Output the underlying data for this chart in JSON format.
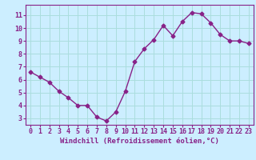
{
  "x": [
    0,
    1,
    2,
    3,
    4,
    5,
    6,
    7,
    8,
    9,
    10,
    11,
    12,
    13,
    14,
    15,
    16,
    17,
    18,
    19,
    20,
    21,
    22,
    23
  ],
  "y": [
    6.6,
    6.2,
    5.8,
    5.1,
    4.6,
    4.0,
    4.0,
    3.1,
    2.8,
    3.5,
    5.1,
    7.4,
    8.4,
    9.1,
    10.2,
    9.4,
    10.5,
    11.2,
    11.1,
    10.4,
    9.5,
    9.0,
    9.0,
    8.8
  ],
  "line_color": "#882288",
  "marker": "D",
  "markersize": 2.5,
  "linewidth": 1.0,
  "bg_color": "#cceeff",
  "grid_color": "#aadddd",
  "xlabel": "Windchill (Refroidissement éolien,°C)",
  "xlim": [
    -0.5,
    23.5
  ],
  "ylim": [
    2.5,
    11.8
  ],
  "yticks": [
    3,
    4,
    5,
    6,
    7,
    8,
    9,
    10,
    11
  ],
  "xticks": [
    0,
    1,
    2,
    3,
    4,
    5,
    6,
    7,
    8,
    9,
    10,
    11,
    12,
    13,
    14,
    15,
    16,
    17,
    18,
    19,
    20,
    21,
    22,
    23
  ],
  "tick_color": "#882288",
  "label_color": "#882288",
  "xlabel_fontsize": 6.5,
  "tick_fontsize": 6.0
}
